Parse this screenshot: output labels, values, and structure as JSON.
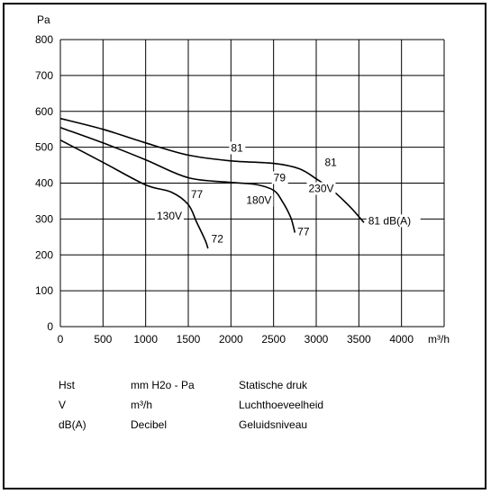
{
  "chart_data": {
    "type": "line",
    "ylabel": "Pa",
    "xlabel_unit": "m³/h",
    "xlim": [
      0,
      4500
    ],
    "ylim": [
      0,
      800
    ],
    "x_ticks": [
      0,
      500,
      1000,
      1500,
      2000,
      2500,
      3000,
      3500,
      4000
    ],
    "y_ticks": [
      0,
      100,
      200,
      300,
      400,
      500,
      600,
      700,
      800
    ],
    "grid": true,
    "series": [
      {
        "name": "230V",
        "points": [
          [
            0,
            580
          ],
          [
            500,
            550
          ],
          [
            1000,
            512
          ],
          [
            1500,
            478
          ],
          [
            2000,
            462
          ],
          [
            2500,
            455
          ],
          [
            2800,
            440
          ],
          [
            3000,
            412
          ],
          [
            3200,
            378
          ],
          [
            3400,
            333
          ],
          [
            3560,
            290
          ]
        ]
      },
      {
        "name": "180V",
        "points": [
          [
            0,
            555
          ],
          [
            500,
            512
          ],
          [
            1000,
            465
          ],
          [
            1500,
            415
          ],
          [
            2000,
            402
          ],
          [
            2300,
            396
          ],
          [
            2500,
            380
          ],
          [
            2600,
            350
          ],
          [
            2700,
            305
          ],
          [
            2750,
            262
          ]
        ]
      },
      {
        "name": "130V",
        "points": [
          [
            0,
            520
          ],
          [
            500,
            458
          ],
          [
            1000,
            395
          ],
          [
            1300,
            375
          ],
          [
            1500,
            340
          ],
          [
            1600,
            290
          ],
          [
            1700,
            240
          ],
          [
            1730,
            218
          ]
        ]
      }
    ],
    "annotations": [
      {
        "text": "81",
        "x": 2000,
        "y": 488
      },
      {
        "text": "81",
        "x": 3100,
        "y": 448
      },
      {
        "text": "79",
        "x": 2500,
        "y": 405
      },
      {
        "text": "230V",
        "x": 2910,
        "y": 375
      },
      {
        "text": "180V",
        "x": 2180,
        "y": 342
      },
      {
        "text": "77",
        "x": 1530,
        "y": 358
      },
      {
        "text": "130V",
        "x": 1130,
        "y": 298
      },
      {
        "text": "72",
        "x": 1770,
        "y": 235
      },
      {
        "text": "77",
        "x": 2780,
        "y": 255
      },
      {
        "text": "81 dB(A)",
        "x": 3610,
        "y": 285
      }
    ]
  },
  "legend": [
    {
      "symbol": "Hst",
      "unit": "mm H2o - Pa",
      "description": "Statische druk"
    },
    {
      "symbol": "V",
      "unit": "m³/h",
      "description": "Luchthoeveelheid"
    },
    {
      "symbol": "dB(A)",
      "unit": "Decibel",
      "description": "Geluidsniveau"
    }
  ]
}
